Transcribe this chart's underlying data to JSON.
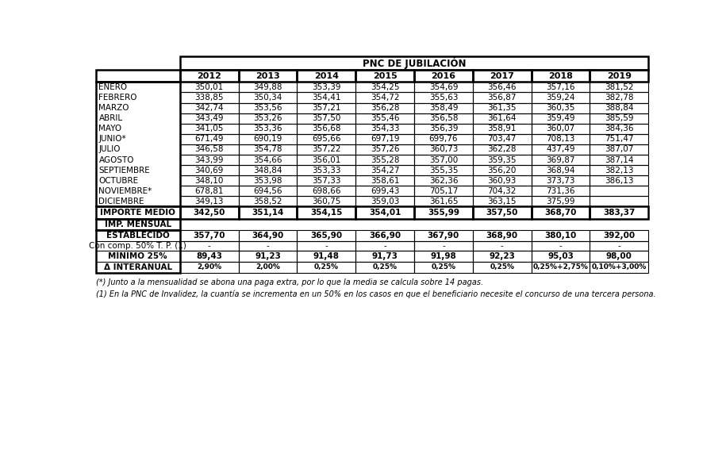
{
  "title": "PNC DE JUBILACIÓN",
  "years": [
    "2012",
    "2013",
    "2014",
    "2015",
    "2016",
    "2017",
    "2018",
    "2019"
  ],
  "months": [
    "ENERO",
    "FEBRERO",
    "MARZO",
    "ABRIL",
    "MAYO",
    "JUNIO*",
    "JULIO",
    "AGOSTO",
    "SEPTIEMBRE",
    "OCTUBRE",
    "NOVIEMBRE*",
    "DICIEMBRE"
  ],
  "monthly_data": [
    [
      "350,01",
      "349,88",
      "353,39",
      "354,25",
      "354,69",
      "356,46",
      "357,16",
      "381,52"
    ],
    [
      "338,85",
      "350,34",
      "354,41",
      "354,72",
      "355,63",
      "356,87",
      "359,24",
      "382,78"
    ],
    [
      "342,74",
      "353,56",
      "357,21",
      "356,28",
      "358,49",
      "361,35",
      "360,35",
      "388,84"
    ],
    [
      "343,49",
      "353,26",
      "357,50",
      "355,46",
      "356,58",
      "361,64",
      "359,49",
      "385,59"
    ],
    [
      "341,05",
      "353,36",
      "356,68",
      "354,33",
      "356,39",
      "358,91",
      "360,07",
      "384,36"
    ],
    [
      "671,49",
      "690,19",
      "695,66",
      "697,19",
      "699,76",
      "703,47",
      "708,13",
      "751,47"
    ],
    [
      "346,58",
      "354,78",
      "357,22",
      "357,26",
      "360,73",
      "362,28",
      "437,49",
      "387,07"
    ],
    [
      "343,99",
      "354,66",
      "356,01",
      "355,28",
      "357,00",
      "359,35",
      "369,87",
      "387,14"
    ],
    [
      "340,69",
      "348,84",
      "353,33",
      "354,27",
      "355,35",
      "356,20",
      "368,94",
      "382,13"
    ],
    [
      "348,10",
      "353,98",
      "357,33",
      "358,61",
      "362,36",
      "360,93",
      "373,73",
      "386,13"
    ],
    [
      "678,81",
      "694,56",
      "698,66",
      "699,43",
      "705,17",
      "704,32",
      "731,36",
      ""
    ],
    [
      "349,13",
      "358,52",
      "360,75",
      "359,03",
      "361,65",
      "363,15",
      "375,99",
      ""
    ]
  ],
  "importe_medio": [
    "342,50",
    "351,14",
    "354,15",
    "354,01",
    "355,99",
    "357,50",
    "368,70",
    "383,37"
  ],
  "establecido": [
    "357,70",
    "364,90",
    "365,90",
    "366,90",
    "367,90",
    "368,90",
    "380,10",
    "392,00"
  ],
  "comp_50": [
    "-",
    "-",
    "-",
    "-",
    "-",
    "-",
    "-",
    "-"
  ],
  "minimo_25": [
    "89,43",
    "91,23",
    "91,48",
    "91,73",
    "91,98",
    "92,23",
    "95,03",
    "98,00"
  ],
  "interanual": [
    "2,90%",
    "2,00%",
    "0,25%",
    "0,25%",
    "0,25%",
    "0,25%",
    "0,25%+2,75%",
    "0,10%+3,00%"
  ],
  "footnote1": "(*) Junto a la mensualidad se abona una paga extra, por lo que la media se calcula sobre 14 pagas.",
  "footnote2": "(1) En la PNC de Invalidez, la cuantía se incrementa en un 50% en los casos en que el beneficiario necesite el concurso de una tercera persona.",
  "bg_color": "white"
}
